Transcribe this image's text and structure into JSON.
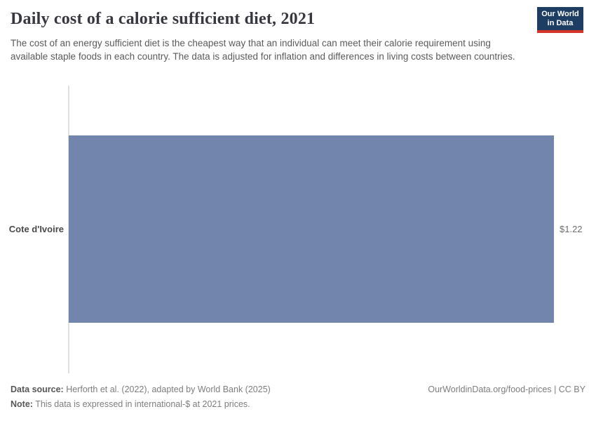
{
  "header": {
    "title": "Daily cost of a calorie sufficient diet, 2021",
    "subtitle": "The cost of an energy sufficient diet is the cheapest way that an individual can meet their calorie requirement using available staple foods in each country. The data is adjusted for inflation and differences in living costs between countries.",
    "logo_line1": "Our World",
    "logo_line2": "in Data"
  },
  "chart_data": {
    "type": "bar",
    "orientation": "horizontal",
    "title": "Daily cost of a calorie sufficient diet, 2021",
    "categories": [
      "Cote d'Ivoire"
    ],
    "values": [
      1.22
    ],
    "value_labels": [
      "$1.22"
    ],
    "xlabel": "",
    "ylabel": "",
    "xlim": [
      0,
      1.22
    ],
    "grid": false,
    "legend": "none",
    "bar_color": "#7286ad"
  },
  "footer": {
    "data_source_label": "Data source:",
    "data_source_text": " Herforth et al. (2022), adapted by World Bank (2025)",
    "note_label": "Note:",
    "note_text": " This data is expressed in international-$ at 2021 prices.",
    "credit": "OurWorldinData.org/food-prices | CC BY"
  },
  "colors": {
    "bar": "#7286ad",
    "logo_background": "#1d3d63",
    "logo_underline": "#d8352a",
    "axis_line": "#e0e0e0",
    "title_text": "#37373f"
  }
}
